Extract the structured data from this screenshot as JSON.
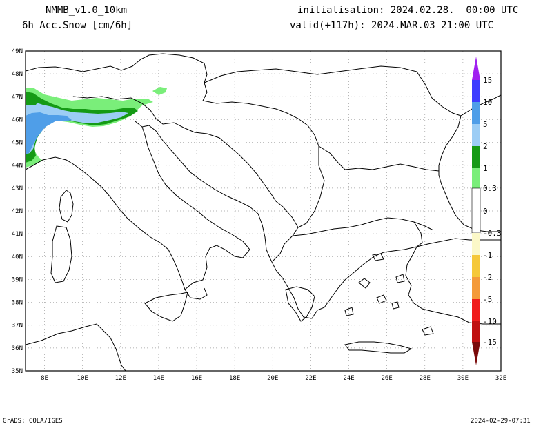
{
  "header": {
    "model": "NMMB_v1.0_10km",
    "field": "6h Acc.Snow [cm/6h]",
    "init": "initialisation: 2024.02.28.  00:00 UTC",
    "valid": "valid(+117h): 2024.MAR.03 21:00 UTC"
  },
  "map": {
    "lon_range": [
      7,
      32
    ],
    "lat_range": [
      35,
      49
    ],
    "lon_ticks": [
      "8E",
      "10E",
      "12E",
      "14E",
      "16E",
      "18E",
      "20E",
      "22E",
      "24E",
      "26E",
      "28E",
      "30E",
      "32E"
    ],
    "lat_ticks": [
      "35N",
      "36N",
      "37N",
      "38N",
      "39N",
      "40N",
      "41N",
      "42N",
      "43N",
      "44N",
      "45N",
      "46N",
      "47N",
      "48N",
      "49N"
    ],
    "grid": "dotted"
  },
  "colorbar": {
    "labels": [
      "15",
      "10",
      "5",
      "2",
      "1",
      "0.3",
      "0",
      "-0.3",
      "-1",
      "-2",
      "-5",
      "-10",
      "-15"
    ],
    "colors": {
      "top_triangle": "#a020f0",
      "c_10_15": "#3c3cff",
      "c_5_10": "#4f9ee8",
      "c_2_5": "#9ccdf5",
      "c_1_2": "#159a15",
      "c_03_1": "#7aee7a",
      "c_neutral": "#ffffff",
      "c_m1_m03": "#fbf8c8",
      "c_m2_m1": "#f5c83a",
      "c_m5_m2": "#f49a3a",
      "c_m10_m5": "#f01c1c",
      "c_m15_m10": "#c01010",
      "bottom_triangle": "#7a0a0a"
    }
  },
  "footer": {
    "left": "GrADS: COLA/IGES",
    "right": "2024-02-29-07:31"
  }
}
